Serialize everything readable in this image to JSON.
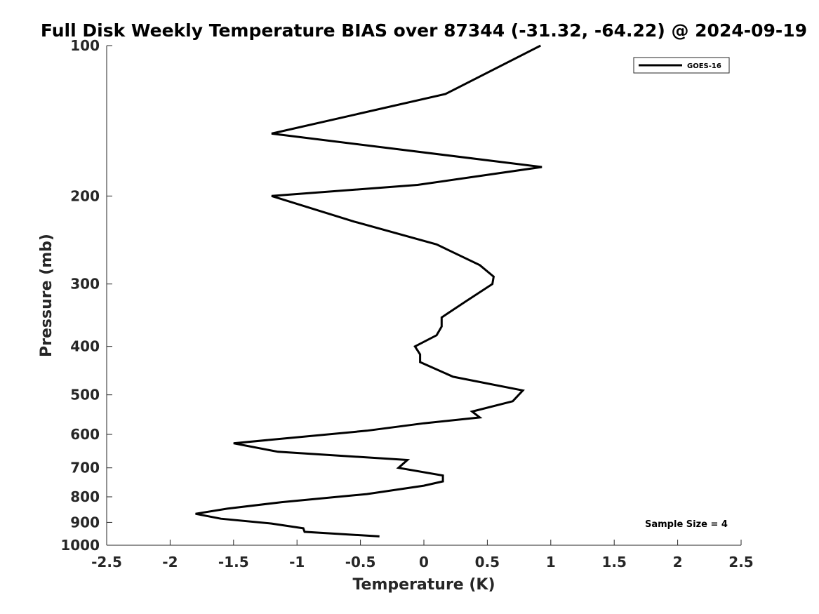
{
  "chart_data": {
    "type": "line",
    "title": "Full Disk Weekly Temperature BIAS over 87344 (-31.32, -64.22) @ 2024-09-19",
    "xlabel": "Temperature (K)",
    "ylabel": "Pressure (mb)",
    "xlim": [
      -2.5,
      2.5
    ],
    "ylim": [
      100,
      1000
    ],
    "y_scale": "log",
    "y_reversed": true,
    "grid": false,
    "legend_position": "top-right",
    "x_ticks": [
      -2.5,
      -2,
      -1.5,
      -1,
      -0.5,
      0,
      0.5,
      1,
      1.5,
      2,
      2.5
    ],
    "x_tick_labels": [
      "-2.5",
      "-2",
      "-1.5",
      "-1",
      "-0.5",
      "0",
      "0.5",
      "1",
      "1.5",
      "2",
      "2.5"
    ],
    "y_ticks": [
      100,
      200,
      300,
      400,
      500,
      600,
      700,
      800,
      900,
      1000
    ],
    "y_tick_labels": [
      "100",
      "200",
      "300",
      "400",
      "500",
      "600",
      "700",
      "800",
      "900",
      "1000"
    ],
    "series": [
      {
        "name": "GOES-16",
        "color": "#000000",
        "points": [
          {
            "x": 0.92,
            "p": 100
          },
          {
            "x": 0.17,
            "p": 125
          },
          {
            "x": -1.2,
            "p": 150
          },
          {
            "x": 0.93,
            "p": 175
          },
          {
            "x": -0.05,
            "p": 190
          },
          {
            "x": -1.2,
            "p": 200
          },
          {
            "x": -0.55,
            "p": 225
          },
          {
            "x": 0.1,
            "p": 250
          },
          {
            "x": 0.44,
            "p": 275
          },
          {
            "x": 0.55,
            "p": 290
          },
          {
            "x": 0.54,
            "p": 300
          },
          {
            "x": 0.33,
            "p": 325
          },
          {
            "x": 0.14,
            "p": 350
          },
          {
            "x": 0.14,
            "p": 365
          },
          {
            "x": 0.1,
            "p": 380
          },
          {
            "x": -0.07,
            "p": 400
          },
          {
            "x": -0.03,
            "p": 415
          },
          {
            "x": -0.03,
            "p": 430
          },
          {
            "x": 0.23,
            "p": 460
          },
          {
            "x": 0.78,
            "p": 490
          },
          {
            "x": 0.7,
            "p": 515
          },
          {
            "x": 0.38,
            "p": 540
          },
          {
            "x": 0.44,
            "p": 555
          },
          {
            "x": 0.0,
            "p": 570
          },
          {
            "x": -0.45,
            "p": 590
          },
          {
            "x": -1.5,
            "p": 625
          },
          {
            "x": -1.15,
            "p": 650
          },
          {
            "x": -0.13,
            "p": 675
          },
          {
            "x": -0.2,
            "p": 700
          },
          {
            "x": 0.15,
            "p": 725
          },
          {
            "x": 0.15,
            "p": 745
          },
          {
            "x": 0.0,
            "p": 760
          },
          {
            "x": -0.45,
            "p": 790
          },
          {
            "x": -1.12,
            "p": 820
          },
          {
            "x": -1.55,
            "p": 845
          },
          {
            "x": -1.8,
            "p": 865
          },
          {
            "x": -1.6,
            "p": 885
          },
          {
            "x": -1.2,
            "p": 905
          },
          {
            "x": -0.95,
            "p": 925
          },
          {
            "x": -0.94,
            "p": 940
          },
          {
            "x": -0.35,
            "p": 960
          }
        ]
      }
    ],
    "annotation": "Sample Size = 4"
  }
}
